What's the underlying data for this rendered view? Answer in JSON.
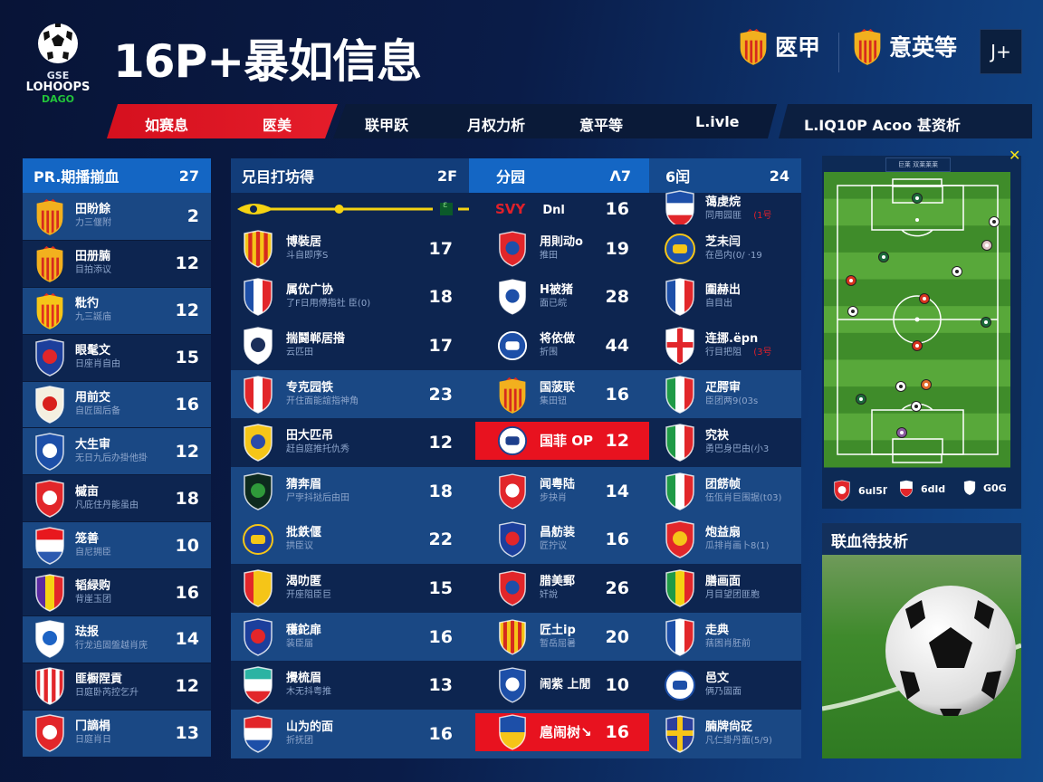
{
  "logo": {
    "line1": "GSE",
    "line2": "LOHOOPS",
    "line3": "DAGO"
  },
  "header": {
    "title": "16P+暴如信息",
    "leagues": [
      {
        "label": "匧甲",
        "crest": "crown-shield-icon"
      },
      {
        "label": "意英等",
        "crest": "crown-shield-icon"
      }
    ],
    "user_button": "J+"
  },
  "nav": {
    "active": [
      {
        "label": "如赛息"
      },
      {
        "label": "匧美"
      }
    ],
    "items": [
      {
        "label": "联甲跃"
      },
      {
        "label": "月权力析"
      },
      {
        "label": "意平等"
      },
      {
        "label": "L.ivle"
      }
    ],
    "extra": "L.IQ10P Acoo 甚资析"
  },
  "left_panel": {
    "title": "PR.期播揃血",
    "count": "27",
    "rows": [
      {
        "name": "田盼餘",
        "sub": "力三偃附",
        "value": "2",
        "crest": {
          "type": "crown",
          "colors": [
            "#f2b01e",
            "#d62a1e"
          ]
        }
      },
      {
        "name": "田册腩",
        "sub": "目拍添议",
        "value": "12",
        "crest": {
          "type": "crown",
          "colors": [
            "#f2b01e",
            "#d62a1e"
          ]
        }
      },
      {
        "name": "粃彴",
        "sub": "九三誕庙",
        "value": "12",
        "crest": {
          "type": "crown",
          "colors": [
            "#f5c518",
            "#e0301e"
          ]
        }
      },
      {
        "name": "眼髦文",
        "sub": "日座肖自由",
        "value": "15",
        "crest": {
          "type": "center",
          "colors": [
            "#1c3f9c",
            "#e0262a"
          ]
        }
      },
      {
        "name": "用前交",
        "sub": "自匠固后备",
        "value": "16",
        "crest": {
          "type": "center",
          "colors": [
            "#f4efe0",
            "#d8201c"
          ]
        }
      },
      {
        "name": "大生审",
        "sub": "无日九后办掛他掛",
        "value": "12",
        "crest": {
          "type": "center",
          "colors": [
            "#1d4fa8",
            "#ffffff"
          ]
        }
      },
      {
        "name": "槭亩",
        "sub": "凡庇住丹能虽由",
        "value": "18",
        "crest": {
          "type": "center",
          "colors": [
            "#e2262a",
            "#ffffff"
          ]
        }
      },
      {
        "name": "笼善",
        "sub": "自尼拥臣",
        "value": "10",
        "crest": {
          "type": "h",
          "colors": [
            "#e8181e",
            "#ffffff",
            "#2c5ab0"
          ]
        }
      },
      {
        "name": "韬緑购",
        "sub": "背崖玉团",
        "value": "16",
        "crest": {
          "type": "v",
          "colors": [
            "#5b2aa0",
            "#f5d312",
            "#e2262a"
          ]
        }
      },
      {
        "name": "珐报",
        "sub": "行龙追固盤越肖庑",
        "value": "14",
        "crest": {
          "type": "center",
          "colors": [
            "#ffffff",
            "#1d63c4"
          ]
        }
      },
      {
        "name": "匪橱陧貢",
        "sub": "日庭卧芮控乞升",
        "value": "12",
        "crest": {
          "type": "v",
          "colors": [
            "#e2262a",
            "#ffffff",
            "#e2262a",
            "#ffffff",
            "#e2262a",
            "#ffffff",
            "#e2262a"
          ]
        }
      },
      {
        "name": "冂謫梋",
        "sub": "日庭肖日",
        "value": "13",
        "crest": {
          "type": "center",
          "colors": [
            "#e2262a",
            "#ffffff"
          ]
        }
      }
    ]
  },
  "mid_panel": {
    "headers": [
      {
        "title": "兄目打坊得",
        "count": "2F"
      },
      {
        "title": "分园",
        "count": "Λ7"
      },
      {
        "title": "6闰",
        "count": "24"
      }
    ],
    "slider": {
      "value": 0.45,
      "color": "#f5d312",
      "tag": "ɛ"
    },
    "rows": [
      {
        "a": null,
        "b": {
          "name": "SVY",
          "name2": "Dnl",
          "value": "16",
          "highlight": false,
          "crest": null
        },
        "c": {
          "name": "蔼虔烷",
          "sub": "同用园匪",
          "tag": "(1号",
          "crest": {
            "type": "h",
            "colors": [
              "#1d4fa8",
              "#ffffff",
              "#e2262a"
            ]
          }
        }
      },
      {
        "hl": false,
        "a": {
          "name": "博裝居",
          "sub": "斗自即序S",
          "value": "17",
          "crest": {
            "type": "v",
            "colors": [
              "#f5c518",
              "#d62a1e",
              "#f5c518",
              "#d62a1e",
              "#f5c518",
              "#d62a1e",
              "#f5c518"
            ]
          }
        },
        "b": {
          "name": "用則动o",
          "sub": "推田",
          "value": "19",
          "crest": {
            "type": "center",
            "colors": [
              "#e2262a",
              "#1d4fa8"
            ]
          }
        },
        "c": {
          "name": "芝未闫",
          "sub": "在邑内(0/ ·19",
          "crest": {
            "type": "circle",
            "colors": [
              "#1d4fa8",
              "#f5c518"
            ]
          }
        }
      },
      {
        "hl": false,
        "a": {
          "name": "属优广协",
          "sub": "了F日用傅指社 臣(0)",
          "value": "18",
          "crest": {
            "type": "v",
            "colors": [
              "#1d4fa8",
              "#ffffff",
              "#e2262a"
            ]
          }
        },
        "b": {
          "name": "H被猪",
          "sub": "面已皖",
          "value": "28",
          "crest": {
            "type": "center",
            "colors": [
              "#ffffff",
              "#1d4fa8"
            ]
          }
        },
        "c": {
          "name": "圍赫出",
          "sub": "自目出",
          "crest": {
            "type": "v",
            "colors": [
              "#1d4fa8",
              "#ffffff",
              "#e2262a"
            ]
          }
        }
      },
      {
        "hl": false,
        "a": {
          "name": "揣鬪郸居揝",
          "sub": "云匹田",
          "value": "17",
          "crest": {
            "type": "center",
            "colors": [
              "#ffffff",
              "#1c2f5a"
            ]
          }
        },
        "b": {
          "name": "将依做",
          "sub": "折围",
          "value": "44",
          "crest": {
            "type": "circle",
            "colors": [
              "#1d4fa8",
              "#ffffff"
            ]
          }
        },
        "c": {
          "name": "连挪.ёpn",
          "sub": "行目把阻",
          "tag": "(3号",
          "crest": {
            "type": "cross",
            "colors": [
              "#ffffff",
              "#e2262a"
            ]
          }
        }
      },
      {
        "hl": true,
        "a": {
          "name": "专克园铁",
          "sub": "开住面能誼指神角",
          "value": "23",
          "crest": {
            "type": "v",
            "colors": [
              "#e2262a",
              "#ffffff",
              "#e2262a"
            ]
          }
        },
        "b": {
          "name": "国菠联",
          "sub": "集田钮",
          "value": "16",
          "crest": {
            "type": "crown",
            "colors": [
              "#f2b01e",
              "#d62a1e"
            ]
          }
        },
        "c": {
          "name": "疋腭审",
          "sub": "臣团两9(03s",
          "crest": {
            "type": "v",
            "colors": [
              "#1f9a46",
              "#ffffff",
              "#e2262a"
            ]
          }
        }
      },
      {
        "hl": false,
        "a": {
          "name": "田大匹吊",
          "sub": "赶自庭推托仇秀",
          "value": "12",
          "crest": {
            "type": "center",
            "colors": [
              "#f5c518",
              "#2c4aa8"
            ]
          }
        },
        "b": {
          "name": "国菲 OP",
          "sub": "",
          "value": "12",
          "highlight": true,
          "crest": {
            "type": "circle",
            "colors": [
              "#ffffff",
              "#1d3f8c"
            ]
          }
        },
        "c": {
          "name": "究袂",
          "sub": "勇巴身巴由(小3",
          "crest": {
            "type": "v",
            "colors": [
              "#1f9a46",
              "#ffffff",
              "#e2262a"
            ]
          }
        }
      },
      {
        "hl": true,
        "a": {
          "name": "猜奔眉",
          "sub": "尸孛抖挞后由田",
          "value": "18",
          "crest": {
            "type": "center",
            "colors": [
              "#0d2a1e",
              "#2f9a3a"
            ]
          }
        },
        "b": {
          "name": "闻粤陆",
          "sub": "步抉肖",
          "value": "14",
          "crest": {
            "type": "center",
            "colors": [
              "#e2262a",
              "#ffffff"
            ]
          }
        },
        "c": {
          "name": "团餝帧",
          "sub": "伍佤肖巨围据(t03)",
          "crest": {
            "type": "v",
            "colors": [
              "#1f9a46",
              "#ffffff",
              "#e2262a"
            ]
          }
        }
      },
      {
        "hl": true,
        "a": {
          "name": "批鉄偃",
          "sub": "拱臣议",
          "value": "22",
          "crest": {
            "type": "circle",
            "colors": [
              "#1d3f9c",
              "#f5c518"
            ]
          }
        },
        "b": {
          "name": "昌舫装",
          "sub": "匠拧议",
          "value": "16",
          "crest": {
            "type": "center",
            "colors": [
              "#1c3f9c",
              "#e2262a"
            ]
          }
        },
        "c": {
          "name": "炮益扇",
          "sub": "瓜排肖画卜8(1)",
          "crest": {
            "type": "center",
            "colors": [
              "#e2262a",
              "#f5c518"
            ]
          }
        }
      },
      {
        "hl": false,
        "a": {
          "name": "渴叻匿",
          "sub": "开座阻臣巨",
          "value": "15",
          "crest": {
            "type": "v",
            "colors": [
              "#e2262a",
              "#f5c518",
              "#f5c518"
            ]
          }
        },
        "b": {
          "name": "腊美郵",
          "sub": "奸說",
          "value": "26",
          "crest": {
            "type": "center",
            "colors": [
              "#e2262a",
              "#1d4fa8"
            ]
          }
        },
        "c": {
          "name": "膳画面",
          "sub": "月目望团匪胞",
          "crest": {
            "type": "v",
            "colors": [
              "#1f9a46",
              "#f5d312",
              "#e2262a"
            ]
          }
        }
      },
      {
        "hl": true,
        "a": {
          "name": "穫鉈扉",
          "sub": "装臣届",
          "value": "16",
          "crest": {
            "type": "center",
            "colors": [
              "#1c3f9c",
              "#e2262a"
            ]
          }
        },
        "b": {
          "name": "匠土ip",
          "sub": "暂岳屈暑",
          "value": "20",
          "crest": {
            "type": "v",
            "colors": [
              "#f5c518",
              "#d62a1e",
              "#f5c518",
              "#d62a1e",
              "#f5c518",
              "#d62a1e",
              "#f5c518"
            ]
          }
        },
        "c": {
          "name": "走典",
          "sub": "葀困肖胚前",
          "crest": {
            "type": "v",
            "colors": [
              "#1d4fa8",
              "#ffffff",
              "#e2262a"
            ]
          }
        }
      },
      {
        "hl": false,
        "a": {
          "name": "攪梳眉",
          "sub": "木无抖粤推",
          "value": "13",
          "crest": {
            "type": "h",
            "colors": [
              "#2bb3a3",
              "#ffffff",
              "#e2262a"
            ]
          }
        },
        "b": {
          "name": "闹紫 上閒",
          "sub": "",
          "value": "10",
          "crest": {
            "type": "center",
            "colors": [
              "#1d4fa8",
              "#ffffff"
            ]
          }
        },
        "c": {
          "name": "邑文",
          "sub": "俩乃固面",
          "crest": {
            "type": "circle",
            "colors": [
              "#ffffff",
              "#1d4fa8"
            ]
          }
        }
      },
      {
        "hl": true,
        "a": {
          "name": "山为的面",
          "sub": "折抚团",
          "value": "16",
          "crest": {
            "type": "h",
            "colors": [
              "#e2262a",
              "#ffffff",
              "#1d4fa8"
            ]
          }
        },
        "b": {
          "name": "扈闹树↘",
          "sub": "",
          "value": "16",
          "highlight": true,
          "crest": {
            "type": "h",
            "colors": [
              "#1d4fa8",
              "#f5c518"
            ]
          }
        },
        "c": {
          "name": "腩牌尙砭",
          "sub": "凡仁掛丹面(5/9)",
          "crest": {
            "type": "cross",
            "colors": [
              "#2c3f9c",
              "#f5c518"
            ]
          }
        }
      }
    ]
  },
  "pitch": {
    "caption": "巨莱 双莱莱莱",
    "legend": [
      {
        "label": "6ul5ľ",
        "color": "#e2262a"
      },
      {
        "label": "6dld",
        "color": "#e2262a"
      },
      {
        "label": "G0G",
        "color": "#ffffff"
      }
    ]
  },
  "analysis_card": {
    "title": "联血待技析"
  },
  "colors": {
    "accent_red": "#e8121f",
    "accent_blue": "#1466c4",
    "row_light": "#1a4884",
    "row_dark": "#0d2550"
  }
}
